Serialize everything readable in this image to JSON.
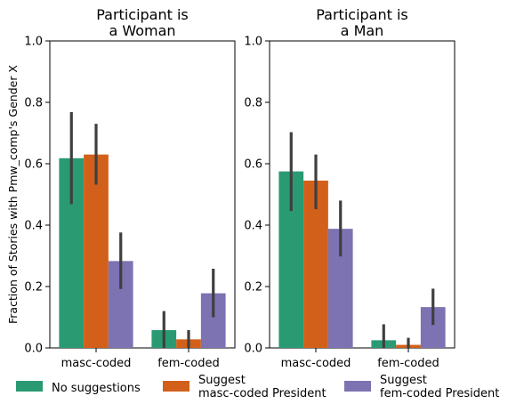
{
  "chart_data": {
    "type": "bar",
    "ylabel": "Fraction of Stories with Pmw_comp's Gender X",
    "ylim": [
      0,
      1.0
    ],
    "yticks": [
      "0.0",
      "0.2",
      "0.4",
      "0.6",
      "0.8",
      "1.0"
    ],
    "categories": [
      "masc-coded",
      "fem-coded"
    ],
    "series_names": [
      [
        "No suggestions"
      ],
      [
        "Suggest",
        "masc-coded President"
      ],
      [
        "Suggest",
        "fem-coded President"
      ]
    ],
    "colors": [
      "#2a9a72",
      "#d2601a",
      "#7d72b2"
    ],
    "error_bar_color": "#3f3f3f",
    "panels": [
      {
        "title": [
          "Participant is",
          "a Woman"
        ],
        "series": [
          {
            "values": [
              0.618,
              0.058
            ],
            "err_low": [
              0.468,
              0.0
            ],
            "err_high": [
              0.768,
              0.12
            ]
          },
          {
            "values": [
              0.63,
              0.028
            ],
            "err_low": [
              0.532,
              0.0
            ],
            "err_high": [
              0.73,
              0.058
            ]
          },
          {
            "values": [
              0.283,
              0.178
            ],
            "err_low": [
              0.192,
              0.1
            ],
            "err_high": [
              0.376,
              0.258
            ]
          }
        ]
      },
      {
        "title": [
          "Participant is",
          "a Man"
        ],
        "series": [
          {
            "values": [
              0.575,
              0.025
            ],
            "err_low": [
              0.446,
              0.0
            ],
            "err_high": [
              0.703,
              0.077
            ]
          },
          {
            "values": [
              0.545,
              0.01
            ],
            "err_low": [
              0.452,
              0.0
            ],
            "err_high": [
              0.63,
              0.033
            ]
          },
          {
            "values": [
              0.388,
              0.133
            ],
            "err_low": [
              0.298,
              0.075
            ],
            "err_high": [
              0.48,
              0.193
            ]
          }
        ]
      }
    ],
    "legend_position": "bottom"
  }
}
